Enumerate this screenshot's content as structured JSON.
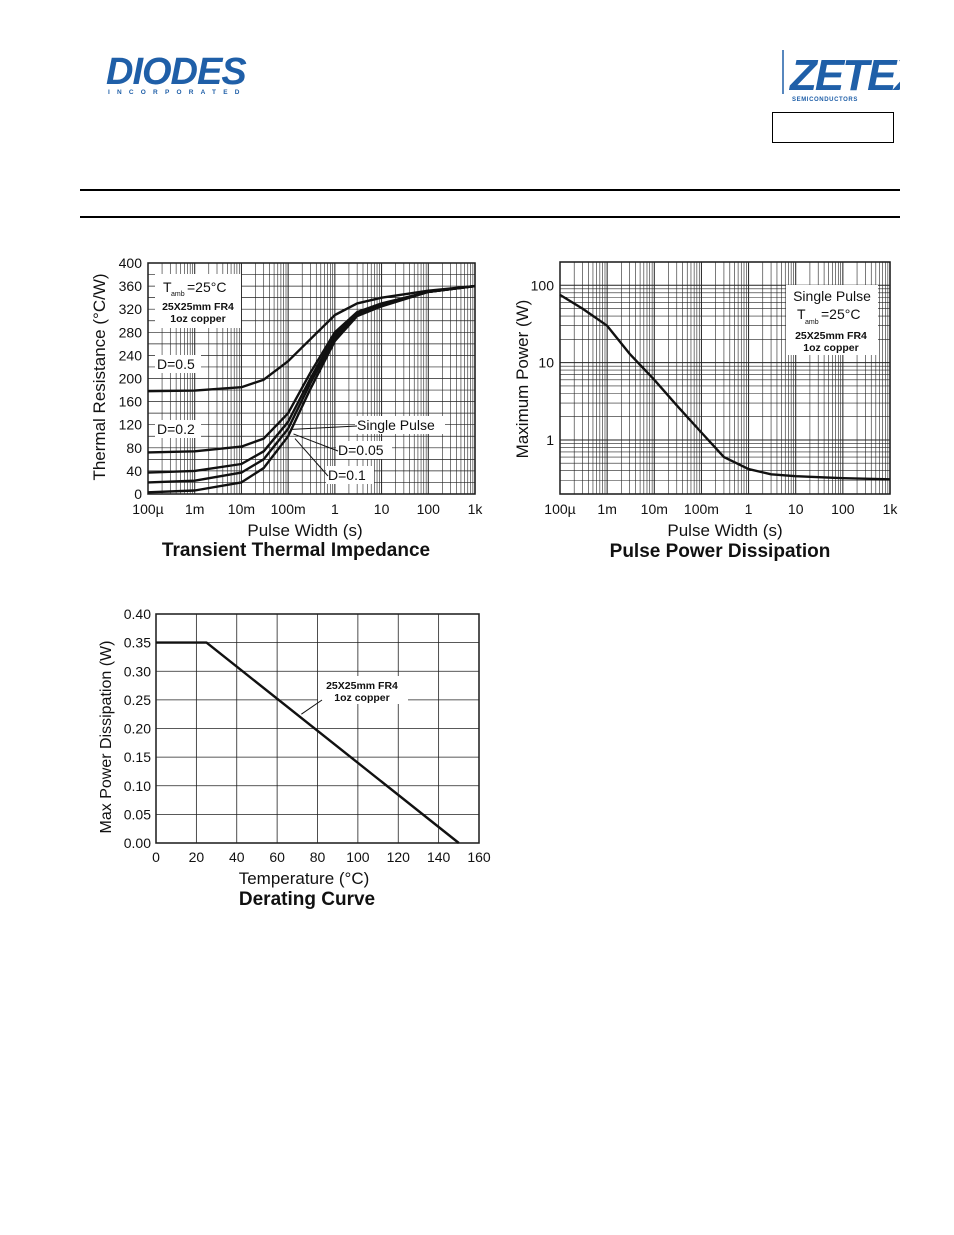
{
  "header": {
    "left_logo": {
      "text": "DIODES",
      "subtext": "INCORPORATED",
      "color": "#1f5fa8"
    },
    "right_logo": {
      "text": "ZETEX",
      "subtext": "SEMICONDUCTORS",
      "color": "#1f5fa8"
    },
    "part_number": ""
  },
  "chart_data": [
    {
      "type": "line",
      "title": "Transient Thermal Impedance",
      "xlabel": "Pulse Width (s)",
      "ylabel": "Thermal Resistance (°C/W)",
      "x_scale": "log",
      "xlim": [
        0.0001,
        1000
      ],
      "ylim": [
        0,
        400
      ],
      "grid": true,
      "x_ticks": [
        {
          "value": 0.0001,
          "label": "100µ"
        },
        {
          "value": 0.001,
          "label": "1m"
        },
        {
          "value": 0.01,
          "label": "10m"
        },
        {
          "value": 0.1,
          "label": "100m"
        },
        {
          "value": 1,
          "label": "1"
        },
        {
          "value": 10,
          "label": "10"
        },
        {
          "value": 100,
          "label": "100"
        },
        {
          "value": 1000,
          "label": "1k"
        }
      ],
      "y_ticks": [
        0,
        40,
        80,
        120,
        160,
        200,
        240,
        280,
        320,
        360,
        400
      ],
      "annotations": {
        "temp_prefix": "T",
        "temp_sub": "amb",
        "temp_value": "=25°C",
        "board_line1": "25X25mm FR4",
        "board_line2": "1oz copper"
      },
      "series": [
        {
          "name": "D=0.5",
          "x": [
            0.0001,
            0.001,
            0.01,
            0.03,
            0.1,
            0.3,
            1,
            3,
            10,
            100,
            1000
          ],
          "y": [
            178,
            179,
            185,
            198,
            230,
            268,
            310,
            330,
            340,
            352,
            360
          ]
        },
        {
          "name": "D=0.2",
          "x": [
            0.0001,
            0.001,
            0.01,
            0.03,
            0.1,
            0.3,
            1,
            3,
            10,
            100,
            1000
          ],
          "y": [
            72,
            74,
            82,
            96,
            140,
            210,
            280,
            315,
            330,
            350,
            360
          ]
        },
        {
          "name": "D=0.1",
          "x": [
            0.0001,
            0.001,
            0.01,
            0.03,
            0.1,
            0.3,
            1,
            3,
            10,
            100,
            1000
          ],
          "y": [
            37,
            40,
            52,
            74,
            125,
            200,
            275,
            312,
            328,
            350,
            360
          ]
        },
        {
          "name": "D=0.05",
          "x": [
            0.0001,
            0.001,
            0.01,
            0.03,
            0.1,
            0.3,
            1,
            3,
            10,
            100,
            1000
          ],
          "y": [
            20,
            23,
            37,
            60,
            113,
            192,
            270,
            310,
            327,
            350,
            360
          ]
        },
        {
          "name": "Single Pulse",
          "x": [
            0.0001,
            0.001,
            0.01,
            0.03,
            0.1,
            0.3,
            1,
            3,
            10,
            100,
            1000
          ],
          "y": [
            3,
            6,
            20,
            45,
            100,
            182,
            265,
            308,
            325,
            350,
            360
          ]
        }
      ]
    },
    {
      "type": "line",
      "title": "Pulse Power Dissipation",
      "xlabel": "Pulse Width (s)",
      "ylabel": "Maximum Power (W)",
      "x_scale": "log",
      "y_scale": "log",
      "xlim": [
        0.0001,
        1000
      ],
      "ylim": [
        0.2,
        200
      ],
      "grid": true,
      "x_ticks": [
        {
          "value": 0.0001,
          "label": "100µ"
        },
        {
          "value": 0.001,
          "label": "1m"
        },
        {
          "value": 0.01,
          "label": "10m"
        },
        {
          "value": 0.1,
          "label": "100m"
        },
        {
          "value": 1,
          "label": "1"
        },
        {
          "value": 10,
          "label": "10"
        },
        {
          "value": 100,
          "label": "100"
        },
        {
          "value": 1000,
          "label": "1k"
        }
      ],
      "y_ticks": [
        {
          "value": 1,
          "label": "1"
        },
        {
          "value": 10,
          "label": "10"
        },
        {
          "value": 100,
          "label": "100"
        }
      ],
      "annotations": {
        "pulse": "Single Pulse",
        "temp_prefix": "T",
        "temp_sub": "amb",
        "temp_value": "=25°C",
        "board_line1": "25X25mm FR4",
        "board_line2": "1oz copper"
      },
      "series": [
        {
          "name": "Single Pulse",
          "x": [
            0.0001,
            0.0003,
            0.001,
            0.003,
            0.01,
            0.03,
            0.1,
            0.3,
            1,
            3,
            10,
            100,
            1000
          ],
          "y": [
            75,
            50,
            30,
            13,
            6,
            2.8,
            1.25,
            0.6,
            0.42,
            0.36,
            0.34,
            0.32,
            0.31
          ]
        }
      ]
    },
    {
      "type": "line",
      "title": "Derating Curve",
      "xlabel": "Temperature (°C)",
      "ylabel": "Max Power Dissipation (W)",
      "xlim": [
        0,
        160
      ],
      "ylim": [
        0,
        0.4
      ],
      "grid": true,
      "x_ticks": [
        0,
        20,
        40,
        60,
        80,
        100,
        120,
        140,
        160
      ],
      "y_ticks": [
        "0.00",
        "0.05",
        "0.10",
        "0.15",
        "0.20",
        "0.25",
        "0.30",
        "0.35",
        "0.40"
      ],
      "annotations": {
        "board_line1": "25X25mm FR4",
        "board_line2": "1oz copper"
      },
      "series": [
        {
          "x": [
            0,
            25,
            150
          ],
          "y": [
            0.35,
            0.35,
            0.0
          ]
        }
      ]
    }
  ]
}
